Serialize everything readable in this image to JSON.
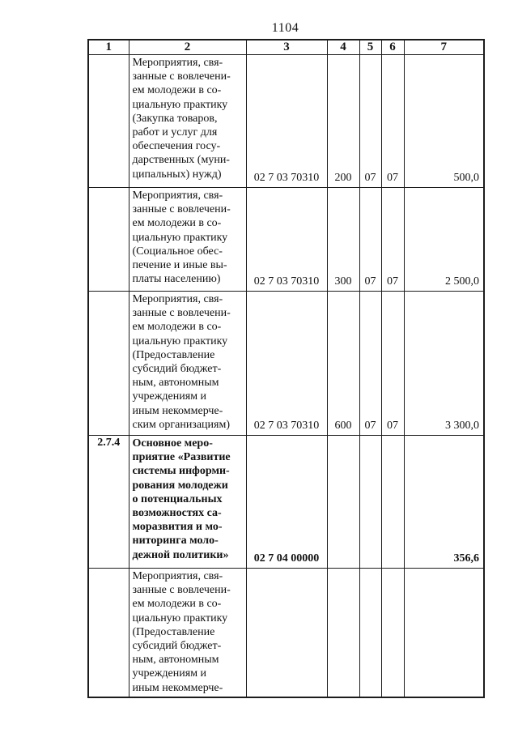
{
  "page_number": "1104",
  "table": {
    "headers": [
      "1",
      "2",
      "3",
      "4",
      "5",
      "6",
      "7"
    ],
    "rows": [
      {
        "num": "",
        "name": "Мероприятия, свя-\nзанные с вовлечени-\nем молодежи в со-\nциальную практику\n(Закупка товаров,\nработ и услуг для\nобеспечения госу-\nдарственных (муни-\nципальных) нужд)",
        "code": "02 7 03 70310",
        "expense_type": "200",
        "section": "07",
        "subsection": "07",
        "amount": "500,0"
      },
      {
        "num": "",
        "name": "Мероприятия, свя-\nзанные с вовлечени-\nем молодежи в со-\nциальную практику\n(Социальное обес-\nпечение и иные вы-\nплаты населению)",
        "code": "02 7 03 70310",
        "expense_type": "300",
        "section": "07",
        "subsection": "07",
        "amount": "2 500,0"
      },
      {
        "num": "",
        "name": "Мероприятия, свя-\nзанные с вовлечени-\nем молодежи в со-\nциальную практику\n(Предоставление\nсубсидий бюджет-\nным, автономным\nучреждениям и\nиным некоммерче-\nским организациям)",
        "code": "02 7 03 70310",
        "expense_type": "600",
        "section": "07",
        "subsection": "07",
        "amount": "3 300,0"
      },
      {
        "num": "2.7.4",
        "name": "Основное меро-\nприятие «Развитие\nсистемы информи-\nрования молодежи\nо потенциальных\nвозможностях са-\nморазвития и мо-\nниторинга моло-\nдежной политики»",
        "code": "02 7 04 00000",
        "expense_type": "",
        "section": "",
        "subsection": "",
        "amount": "356,6"
      },
      {
        "num": "",
        "name": "Мероприятия, свя-\nзанные с вовлечени-\nем молодежи в со-\nциальную практику\n(Предоставление\nсубсидий бюджет-\nным, автономным\nучреждениям и\nиным некоммерче-",
        "code": "",
        "expense_type": "",
        "section": "",
        "subsection": "",
        "amount": ""
      }
    ]
  }
}
